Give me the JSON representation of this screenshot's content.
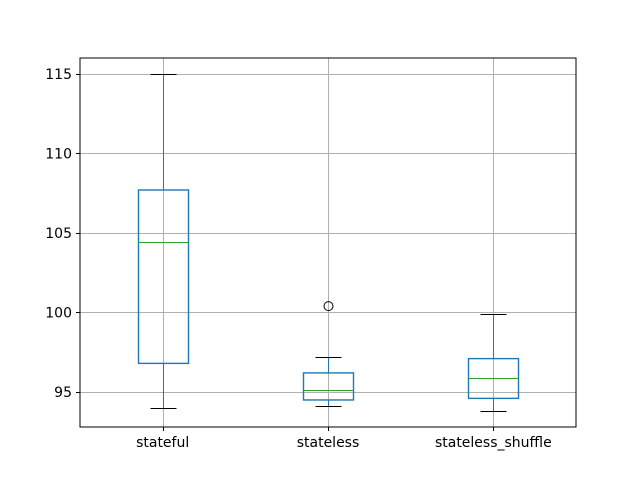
{
  "figure": {
    "background": "#ffffff",
    "title": ""
  },
  "chart_data": {
    "type": "boxplot",
    "title": "",
    "xlabel": "",
    "ylabel": "",
    "categories": [
      "stateful",
      "stateless",
      "stateless_shuffle"
    ],
    "series": [
      {
        "name": "stateful",
        "whislo": 94.0,
        "q1": 96.8,
        "med": 104.4,
        "q3": 107.7,
        "whishi": 115.0,
        "fliers": []
      },
      {
        "name": "stateless",
        "whislo": 94.1,
        "q1": 94.5,
        "med": 95.1,
        "q3": 96.2,
        "whishi": 97.2,
        "fliers": [
          100.4
        ]
      },
      {
        "name": "stateless_shuffle",
        "whislo": 93.8,
        "q1": 94.6,
        "med": 95.9,
        "q3": 97.1,
        "whishi": 99.9,
        "fliers": []
      }
    ],
    "y_ticks": [
      95,
      100,
      105,
      110,
      115
    ],
    "ylim": [
      92.8,
      116.0
    ],
    "xlim": [
      0.5,
      3.5
    ],
    "grid": true,
    "legend": false,
    "colors": {
      "box": "#1f77b4",
      "whisker": "#1f77b4",
      "cap": "#000000",
      "median": "#2ca02c",
      "flier_edge": "#000000",
      "grid": "#b0b0b0",
      "frame": "#000000",
      "tick_text": "#000000",
      "background": "#ffffff"
    }
  }
}
